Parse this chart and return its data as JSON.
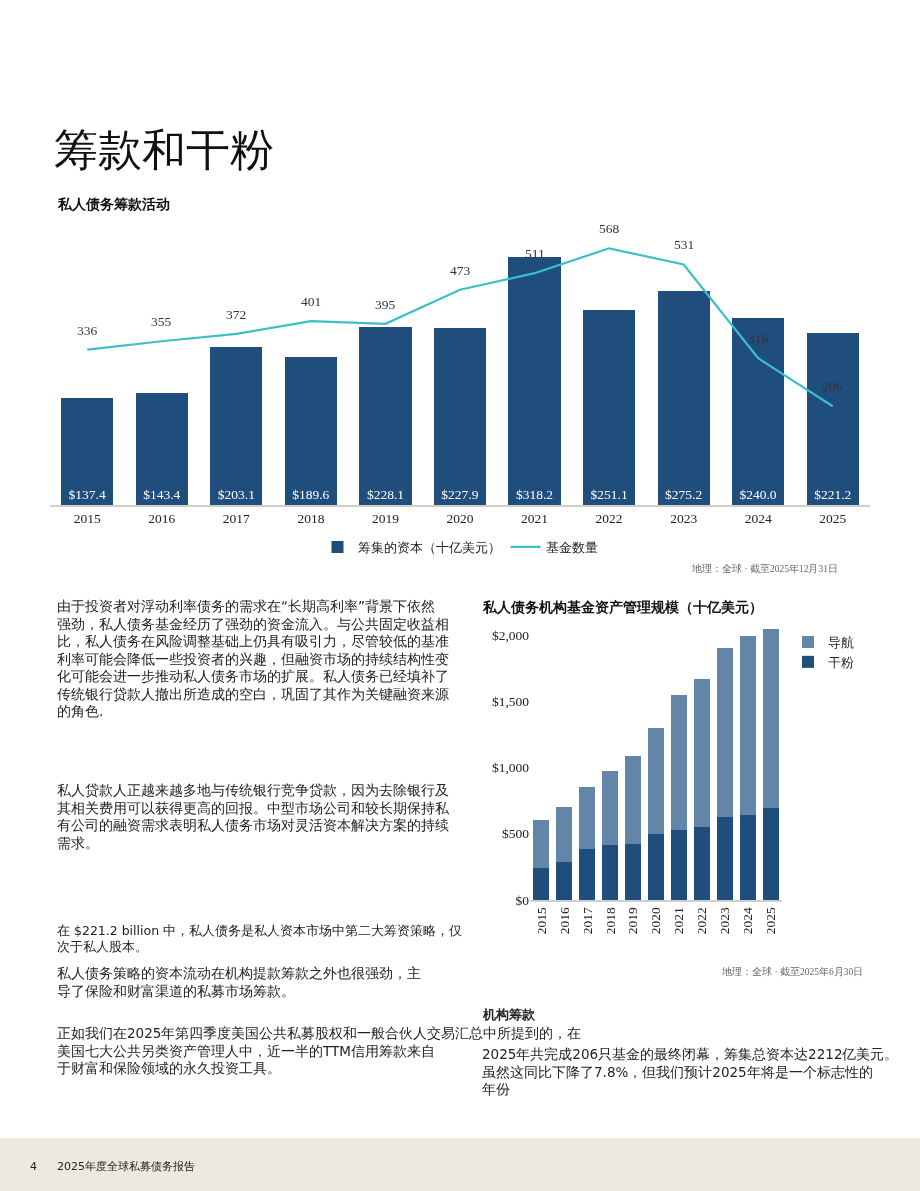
{
  "chart_data": [
    {
      "type": "bar",
      "title": "私人债务筹款活动",
      "categories": [
        "2015",
        "2016",
        "2017",
        "2018",
        "2019",
        "2020",
        "2021",
        "2022",
        "2023",
        "2024",
        "2025"
      ],
      "series": [
        {
          "name": "筹集的资本（十亿美元）",
          "type": "bar",
          "color": "#1f4e7d",
          "values": [
            137.4,
            143.4,
            203.1,
            189.6,
            228.1,
            227.9,
            318.2,
            251.1,
            275.2,
            240.0,
            221.2
          ],
          "value_labels": [
            "$137.4",
            "$143.4",
            "$203.1",
            "$189.6",
            "$228.1",
            "$227.9",
            "$318.2",
            "$251.1",
            "$275.2",
            "$240.0",
            "$221.2"
          ]
        },
        {
          "name": "基金数量",
          "type": "line",
          "axis": "y2",
          "color": "#3cbfc8",
          "values": [
            336,
            355,
            372,
            401,
            395,
            473,
            511,
            568,
            531,
            316,
            206
          ],
          "value_labels": [
            "336",
            "355",
            "372",
            "401",
            "395",
            "473",
            "511",
            "568",
            "531",
            "316",
            "206"
          ]
        }
      ],
      "tick_labels": "x",
      "legend": "bottom",
      "marker": "none",
      "line_style": "solid",
      "annotations": [
        "地理：全球 · 截至2025年12月31日"
      ]
    },
    {
      "type": "bar",
      "title": "私人债务机构基金资产管理规模（十亿美元）",
      "categories": [
        "2015",
        "2016",
        "2017",
        "2018",
        "2019",
        "2020",
        "2021",
        "2022",
        "2023",
        "2024",
        "2025"
      ],
      "stacked": true,
      "series": [
        {
          "name": "干粉",
          "color": "#1f4e7d",
          "values": [
            240,
            285,
            385,
            415,
            425,
            495,
            530,
            550,
            625,
            640,
            695
          ]
        },
        {
          "name": "导航",
          "color": "#6386a8",
          "values": [
            365,
            415,
            465,
            560,
            665,
            800,
            1015,
            1115,
            1275,
            1350,
            1350
          ]
        }
      ],
      "ylim": [
        0,
        2060
      ],
      "yticks": [
        {
          "value": 0,
          "label": "$0"
        },
        {
          "value": 500,
          "label": "$500"
        },
        {
          "value": 1000,
          "label": "$1,000"
        },
        {
          "value": 1500,
          "label": "$1,500"
        },
        {
          "value": 2000,
          "label": "$2,000"
        }
      ],
      "legend": "top right",
      "annotations": [
        "地理：全球 · 截至2025年6月30日"
      ]
    },
    {
      "type": "other",
      "title": "筹款和干粉",
      "annotations": [
        "由于投资者对浮动利率债务的需求在“长期高利率”背景下依然强劲，私人债务基金经历了强劲的资金流入。与公共固定收益相比，私人债务在风险调整基础上仍具有吸引力，尽管较低的基准利率可能会降低一些投资者的兴趣，但融资市场的持续结构性变化可能会进一步推动私人债务市场的扩展。私人债务已经填补了传统银行贷款人撤出所造成的空白，巩固了其作为关键融资来源的角色.",
        "私人贷款人正越来越多地与传统银行竞争贷款，因为去除银行及其相关费用可以获得更高的回报。中型市场公司和较长期保持私有公司的融资需求表明私人债务市场对灵活资本解决方案的持续需求。",
        "在 $221.2 billion 中，私人债务是私人资本市场中第二大筹资策略，仅次于私人股本。",
        "私人债务策略的资本流动在机构提款筹款之外也很强劲，主导了保险和财富渠道的私募市场筹款。",
        "正如我们在2025年第四季度美国公共私募股权和一般合伙人交易汇总中所提到的，在美国七大公共另类资产管理人中，近一半的TTM信用筹款来自于财富和保险领域的永久投资工具。",
        "机构筹款",
        "2025年共完成206只基金的最终闭幕，筹集总资本达2212亿美元。虽然这同比下降了7.8%，但我们预计2025年将是一个标志性的年份",
        "4",
        "2025年度全球私募债务报告"
      ]
    }
  ]
}
